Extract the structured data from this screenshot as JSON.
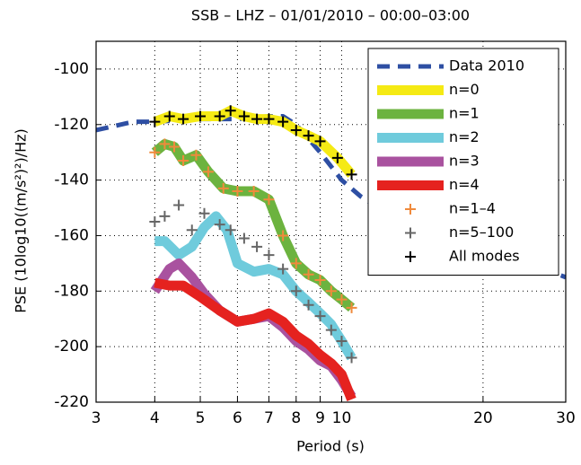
{
  "chart_data": {
    "type": "line",
    "title": "SSB – LHZ – 01/01/2010 – 00:00–03:00",
    "xlabel": "Period (s)",
    "ylabel": "PSE (10log10((m/s²)²)/Hz)",
    "xscale": "log",
    "xlim": [
      3,
      30
    ],
    "xticks": [
      3,
      4,
      5,
      6,
      7,
      8,
      9,
      10,
      20,
      30
    ],
    "ylim": [
      -220,
      -90
    ],
    "yticks": [
      -220,
      -200,
      -180,
      -160,
      -140,
      -120,
      -100
    ],
    "grid": true,
    "legend": "upper right",
    "series": [
      {
        "name": "Data 2010",
        "color": "#2e4fa3",
        "style": "dashed",
        "width": 5,
        "x": [
          3,
          3.6,
          4,
          5,
          6,
          7,
          7.5,
          8,
          9,
          10,
          11,
          12,
          15,
          20,
          25,
          30
        ],
        "values": [
          -122,
          -119,
          -119,
          -118,
          -118,
          -117,
          -117,
          -120,
          -130,
          -140,
          -146,
          -150,
          -157,
          -165,
          -170,
          -175
        ]
      },
      {
        "name": "n=0",
        "color": "#f5ea14",
        "style": "solid",
        "width": 11,
        "x": [
          4,
          4.3,
          4.6,
          5,
          5.5,
          5.8,
          6.2,
          6.6,
          7,
          7.5,
          8,
          8.5,
          9,
          9.8,
          10.5
        ],
        "values": [
          -119,
          -117,
          -118,
          -117,
          -117,
          -115,
          -117,
          -118,
          -118,
          -119,
          -122,
          -124,
          -126,
          -132,
          -138
        ]
      },
      {
        "name": "n=1",
        "color": "#6cb33f",
        "style": "solid",
        "width": 11,
        "x": [
          4,
          4.2,
          4.4,
          4.6,
          4.9,
          5.2,
          5.6,
          6,
          6.5,
          7,
          7.5,
          8,
          8.5,
          9,
          9.5,
          10,
          10.5
        ],
        "values": [
          -130,
          -127,
          -128,
          -133,
          -131,
          -137,
          -143,
          -144,
          -144,
          -147,
          -160,
          -170,
          -174,
          -176,
          -180,
          -183,
          -186
        ]
      },
      {
        "name": "n=2",
        "color": "#6fcbdc",
        "style": "solid",
        "width": 11,
        "x": [
          4,
          4.2,
          4.5,
          4.8,
          5.1,
          5.4,
          5.7,
          6,
          6.5,
          7,
          7.5,
          8,
          8.5,
          9,
          9.5,
          10,
          10.5
        ],
        "values": [
          -162,
          -162,
          -167,
          -164,
          -157,
          -153,
          -158,
          -170,
          -173,
          -172,
          -174,
          -180,
          -184,
          -188,
          -192,
          -198,
          -204
        ]
      },
      {
        "name": "n=3",
        "color": "#a9529f",
        "style": "solid",
        "width": 11,
        "x": [
          4,
          4.3,
          4.5,
          4.8,
          5.1,
          5.5,
          6,
          6.5,
          7,
          7.5,
          8,
          8.5,
          9,
          9.5,
          10,
          10.5
        ],
        "values": [
          -180,
          -172,
          -170,
          -175,
          -181,
          -187,
          -191,
          -190,
          -189,
          -193,
          -198,
          -201,
          -205,
          -207,
          -212,
          -218
        ]
      },
      {
        "name": "n=4",
        "color": "#e5221f",
        "style": "solid",
        "width": 11,
        "x": [
          4,
          4.3,
          4.6,
          5,
          5.5,
          6,
          6.5,
          7,
          7.5,
          8,
          8.5,
          9,
          9.5,
          10,
          10.5
        ],
        "values": [
          -177,
          -178,
          -178,
          -182,
          -187,
          -191,
          -190,
          -188,
          -191,
          -196,
          -199,
          -203,
          -206,
          -210,
          -219
        ]
      },
      {
        "name": "n=1–4",
        "color": "#f08a3c",
        "style": "marker",
        "x": [
          4,
          4.2,
          4.4,
          4.6,
          4.9,
          5.2,
          5.6,
          6,
          6.5,
          7,
          7.5,
          8,
          8.5,
          9,
          9.5,
          10,
          10.5
        ],
        "values": [
          -130,
          -127,
          -128,
          -133,
          -131,
          -137,
          -143,
          -144,
          -144,
          -147,
          -160,
          -170,
          -174,
          -176,
          -180,
          -183,
          -186
        ]
      },
      {
        "name": "n=5–100",
        "color": "#666666",
        "style": "marker",
        "x": [
          4,
          4.2,
          4.5,
          4.8,
          5.1,
          5.5,
          5.8,
          6.2,
          6.6,
          7,
          7.5,
          8,
          8.5,
          9,
          9.5,
          10,
          10.5
        ],
        "values": [
          -155,
          -153,
          -149,
          -158,
          -152,
          -156,
          -158,
          -161,
          -164,
          -167,
          -172,
          -180,
          -185,
          -189,
          -194,
          -198,
          -204
        ]
      },
      {
        "name": "All modes",
        "color": "#000000",
        "style": "marker",
        "x": [
          4,
          4.3,
          4.6,
          5,
          5.5,
          5.8,
          6.2,
          6.6,
          7,
          7.5,
          8,
          8.5,
          9,
          9.8,
          10.5
        ],
        "values": [
          -119,
          -117,
          -118,
          -117,
          -117,
          -115,
          -117,
          -118,
          -118,
          -119,
          -122,
          -124,
          -126,
          -132,
          -138
        ]
      }
    ]
  }
}
